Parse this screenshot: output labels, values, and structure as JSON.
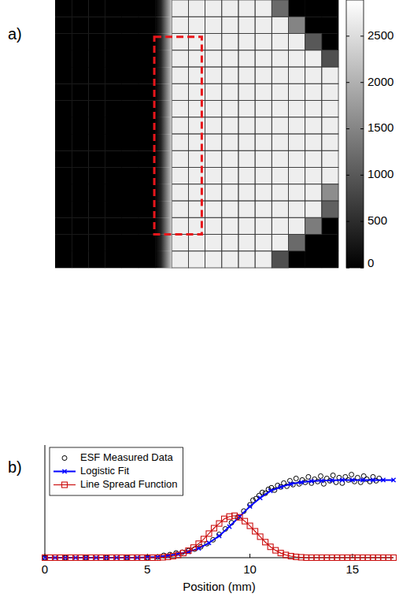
{
  "chart_data": [
    {
      "type": "image",
      "label": "a)",
      "cells": [
        [
          0,
          0,
          0,
          0,
          0,
          0,
          0,
          2700,
          2700,
          2700,
          2700,
          2700,
          2700,
          1200,
          0,
          0,
          0
        ],
        [
          0,
          0,
          0,
          0,
          0,
          0,
          0,
          2700,
          2700,
          2700,
          2700,
          2700,
          2700,
          2700,
          1500,
          0,
          0
        ],
        [
          0,
          0,
          0,
          0,
          0,
          0,
          0,
          2700,
          2700,
          2700,
          2700,
          2700,
          2700,
          2700,
          2700,
          1000,
          0
        ],
        [
          0,
          0,
          0,
          0,
          0,
          0,
          0,
          2700,
          2700,
          2700,
          2700,
          2700,
          2700,
          2700,
          2700,
          2700,
          900
        ],
        [
          0,
          0,
          0,
          0,
          0,
          0,
          0,
          2700,
          2700,
          2700,
          2700,
          2700,
          2700,
          2700,
          2700,
          2700,
          2700
        ],
        [
          0,
          0,
          0,
          0,
          0,
          0,
          0,
          2700,
          2700,
          2700,
          2700,
          2700,
          2700,
          2700,
          2700,
          2700,
          2700
        ],
        [
          0,
          0,
          0,
          0,
          0,
          0,
          0,
          2700,
          2700,
          2700,
          2700,
          2700,
          2700,
          2700,
          2700,
          2700,
          2700
        ],
        [
          0,
          0,
          0,
          0,
          0,
          0,
          0,
          2700,
          2700,
          2700,
          2700,
          2700,
          2700,
          2700,
          2700,
          2700,
          2700
        ],
        [
          0,
          0,
          0,
          0,
          0,
          0,
          0,
          2700,
          2700,
          2700,
          2700,
          2700,
          2700,
          2700,
          2700,
          2700,
          2700
        ],
        [
          0,
          0,
          0,
          0,
          0,
          0,
          0,
          2700,
          2700,
          2700,
          2700,
          2700,
          2700,
          2700,
          2700,
          2700,
          2700
        ],
        [
          0,
          0,
          0,
          0,
          0,
          0,
          0,
          2700,
          2700,
          2700,
          2700,
          2700,
          2700,
          2700,
          2700,
          2700,
          2700
        ],
        [
          0,
          0,
          0,
          0,
          0,
          0,
          0,
          2700,
          2700,
          2700,
          2700,
          2700,
          2700,
          2700,
          2700,
          2700,
          1600
        ],
        [
          0,
          0,
          0,
          0,
          0,
          0,
          0,
          2700,
          2700,
          2700,
          2700,
          2700,
          2700,
          2700,
          2700,
          2700,
          1100
        ],
        [
          0,
          0,
          0,
          0,
          0,
          0,
          0,
          2700,
          2700,
          2700,
          2700,
          2700,
          2700,
          2700,
          2700,
          1400,
          0
        ],
        [
          0,
          0,
          0,
          0,
          0,
          0,
          0,
          2700,
          2700,
          2700,
          2700,
          2700,
          2700,
          2700,
          1200,
          0,
          0
        ],
        [
          0,
          0,
          0,
          0,
          0,
          0,
          0,
          2700,
          2700,
          2700,
          2700,
          2700,
          2700,
          900,
          0,
          0,
          0
        ]
      ],
      "colorbar": {
        "range": [
          0,
          2890
        ],
        "ticks": [
          0,
          500,
          1000,
          1500,
          2000,
          2500
        ]
      }
    },
    {
      "type": "scatter",
      "label": "b)",
      "xlabel": "Position (mm)",
      "xlim": [
        0,
        17
      ],
      "ylim": [
        0,
        1.45
      ],
      "xticks": [
        0,
        5,
        10,
        15
      ],
      "tick_labels": "x",
      "legend": "upper left",
      "series": [
        {
          "name": "ESF Measured Data",
          "type": "scatter",
          "marker": "circle",
          "color": "#000000",
          "x": [
            0,
            1,
            2,
            3,
            4,
            5,
            5.5,
            5.8,
            6.1,
            6.4,
            6.7,
            7.0,
            7.3,
            7.6,
            7.9,
            8.2,
            8.5,
            8.8,
            9.1,
            9.4,
            9.7,
            10.0,
            10.15,
            10.3,
            10.45,
            10.6,
            10.75,
            10.9,
            11.05,
            11.2,
            11.35,
            11.5,
            11.65,
            11.8,
            11.95,
            12.1,
            12.25,
            12.4,
            12.55,
            12.7,
            12.85,
            13.0,
            13.15,
            13.3,
            13.45,
            13.6,
            13.75,
            13.9,
            14.05,
            14.2,
            14.35,
            14.5,
            14.65,
            14.8,
            14.95,
            15.1,
            15.25,
            15.4,
            15.55,
            15.7,
            15.85,
            16.0,
            16.15,
            16.3
          ],
          "values": [
            0,
            0,
            0,
            0,
            0,
            0,
            0.01,
            0.03,
            0.04,
            0.06,
            0.07,
            0.09,
            0.11,
            0.14,
            0.18,
            0.23,
            0.3,
            0.37,
            0.45,
            0.52,
            0.6,
            0.68,
            0.74,
            0.76,
            0.8,
            0.84,
            0.83,
            0.88,
            0.9,
            0.87,
            0.93,
            0.91,
            0.96,
            0.92,
            0.99,
            0.94,
            1.02,
            0.95,
            1.0,
            0.97,
            1.04,
            0.96,
            1.01,
            0.98,
            1.05,
            0.95,
            1.02,
            0.99,
            1.06,
            0.97,
            1.03,
            0.96,
            1.04,
            1.0,
            1.07,
            0.98,
            1.03,
            0.97,
            1.05,
            1.01,
            0.98,
            1.04,
            0.99,
            1.02
          ]
        },
        {
          "name": "Logistic Fit",
          "type": "line",
          "marker": "x",
          "color": "#0000ff",
          "x": [
            0,
            0.5,
            1,
            1.5,
            2,
            2.5,
            3,
            3.5,
            4,
            4.5,
            5,
            5.5,
            6,
            6.5,
            7,
            7.5,
            8,
            8.5,
            9,
            9.5,
            10,
            10.5,
            11,
            11.5,
            12,
            12.5,
            13,
            13.5,
            14,
            14.5,
            15,
            15.5,
            16,
            16.5,
            17
          ],
          "values": [
            0,
            0,
            0,
            0,
            0,
            0,
            0,
            0,
            0,
            0,
            0.005,
            0.01,
            0.025,
            0.045,
            0.075,
            0.12,
            0.19,
            0.28,
            0.4,
            0.53,
            0.66,
            0.77,
            0.86,
            0.91,
            0.95,
            0.97,
            0.985,
            0.99,
            0.995,
            1,
            1,
            1,
            1,
            1,
            1
          ]
        },
        {
          "name": "Line Spread Function",
          "type": "line",
          "marker": "square",
          "color": "#cc1111",
          "x": [
            0,
            0.25,
            0.5,
            0.75,
            1,
            1.25,
            1.5,
            1.75,
            2,
            2.25,
            2.5,
            2.75,
            3,
            3.25,
            3.5,
            3.75,
            4,
            4.25,
            4.5,
            4.75,
            5,
            5.25,
            5.5,
            5.75,
            6,
            6.25,
            6.5,
            6.75,
            7,
            7.25,
            7.5,
            7.75,
            8,
            8.25,
            8.5,
            8.75,
            9,
            9.25,
            9.5,
            9.75,
            10,
            10.25,
            10.5,
            10.75,
            11,
            11.25,
            11.5,
            11.75,
            12,
            12.25,
            12.5,
            12.75,
            13,
            13.25,
            13.5,
            13.75,
            14,
            14.25,
            14.5,
            14.75,
            15,
            15.25,
            15.5,
            15.75,
            16,
            16.25,
            16.5,
            16.75,
            17
          ],
          "values": [
            0,
            0,
            0,
            0,
            0,
            0,
            0,
            0,
            0,
            0,
            0,
            0,
            0,
            0,
            0,
            0,
            0,
            0,
            0,
            0,
            0,
            0,
            0,
            0.005,
            0.01,
            0.02,
            0.035,
            0.06,
            0.09,
            0.13,
            0.18,
            0.24,
            0.31,
            0.38,
            0.44,
            0.5,
            0.53,
            0.54,
            0.52,
            0.47,
            0.41,
            0.34,
            0.27,
            0.2,
            0.14,
            0.095,
            0.06,
            0.035,
            0.02,
            0.01,
            0.005,
            0,
            0,
            0,
            0,
            0,
            0,
            0,
            0,
            0,
            0,
            0,
            0,
            0,
            0,
            0,
            0,
            0,
            0
          ]
        }
      ]
    }
  ]
}
